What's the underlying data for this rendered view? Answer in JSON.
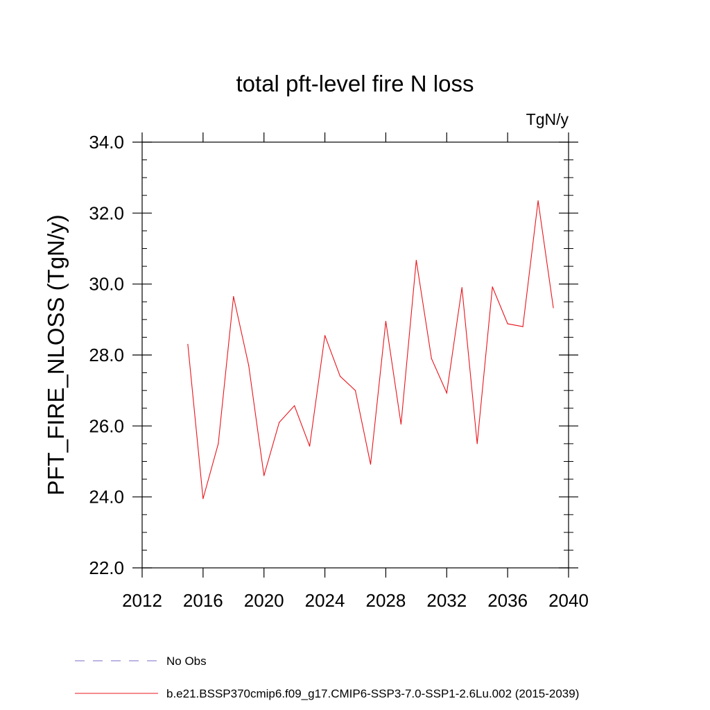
{
  "chart_data": {
    "type": "line",
    "title": "total pft-level fire N loss",
    "units": "TgN/y",
    "xlabel": "",
    "ylabel": "PFT_FIRE_NLOSS  (TgN/y)",
    "xlim": [
      2012,
      2040
    ],
    "ylim": [
      22.0,
      34.0
    ],
    "x_ticks": [
      2012,
      2016,
      2020,
      2024,
      2028,
      2032,
      2036,
      2040
    ],
    "x_tick_labels": [
      "2012",
      "2016",
      "2020",
      "2024",
      "2028",
      "2032",
      "2036",
      "2040"
    ],
    "y_ticks": [
      22.0,
      24.0,
      26.0,
      28.0,
      30.0,
      32.0,
      34.0
    ],
    "y_tick_labels": [
      "22.0",
      "24.0",
      "26.0",
      "28.0",
      "30.0",
      "32.0",
      "34.0"
    ],
    "grid": false,
    "legend_placement": "bottom",
    "series": [
      {
        "name": "b.e21.BSSP370cmip6.f09_g17.CMIP6-SSP3-7.0-SSP1-2.6Lu.002 (2015-2039)",
        "color": "#e8141b",
        "x": [
          2015,
          2016,
          2017,
          2018,
          2019,
          2020,
          2021,
          2022,
          2023,
          2024,
          2025,
          2026,
          2027,
          2028,
          2029,
          2030,
          2031,
          2032,
          2033,
          2034,
          2035,
          2036,
          2037,
          2038,
          2039
        ],
        "y": [
          28.3,
          23.95,
          25.5,
          29.65,
          27.7,
          24.6,
          26.1,
          26.57,
          25.43,
          28.55,
          27.4,
          27.0,
          24.92,
          28.95,
          26.05,
          30.67,
          27.9,
          26.93,
          29.9,
          25.5,
          29.92,
          28.88,
          28.8,
          32.35,
          29.33
        ]
      }
    ],
    "legend": [
      {
        "label": "No Obs",
        "color": "#7b68c8",
        "style": "dashed"
      },
      {
        "label": "b.e21.BSSP370cmip6.f09_g17.CMIP6-SSP3-7.0-SSP1-2.6Lu.002 (2015-2039)",
        "color": "#e8141b",
        "style": "solid"
      }
    ]
  }
}
